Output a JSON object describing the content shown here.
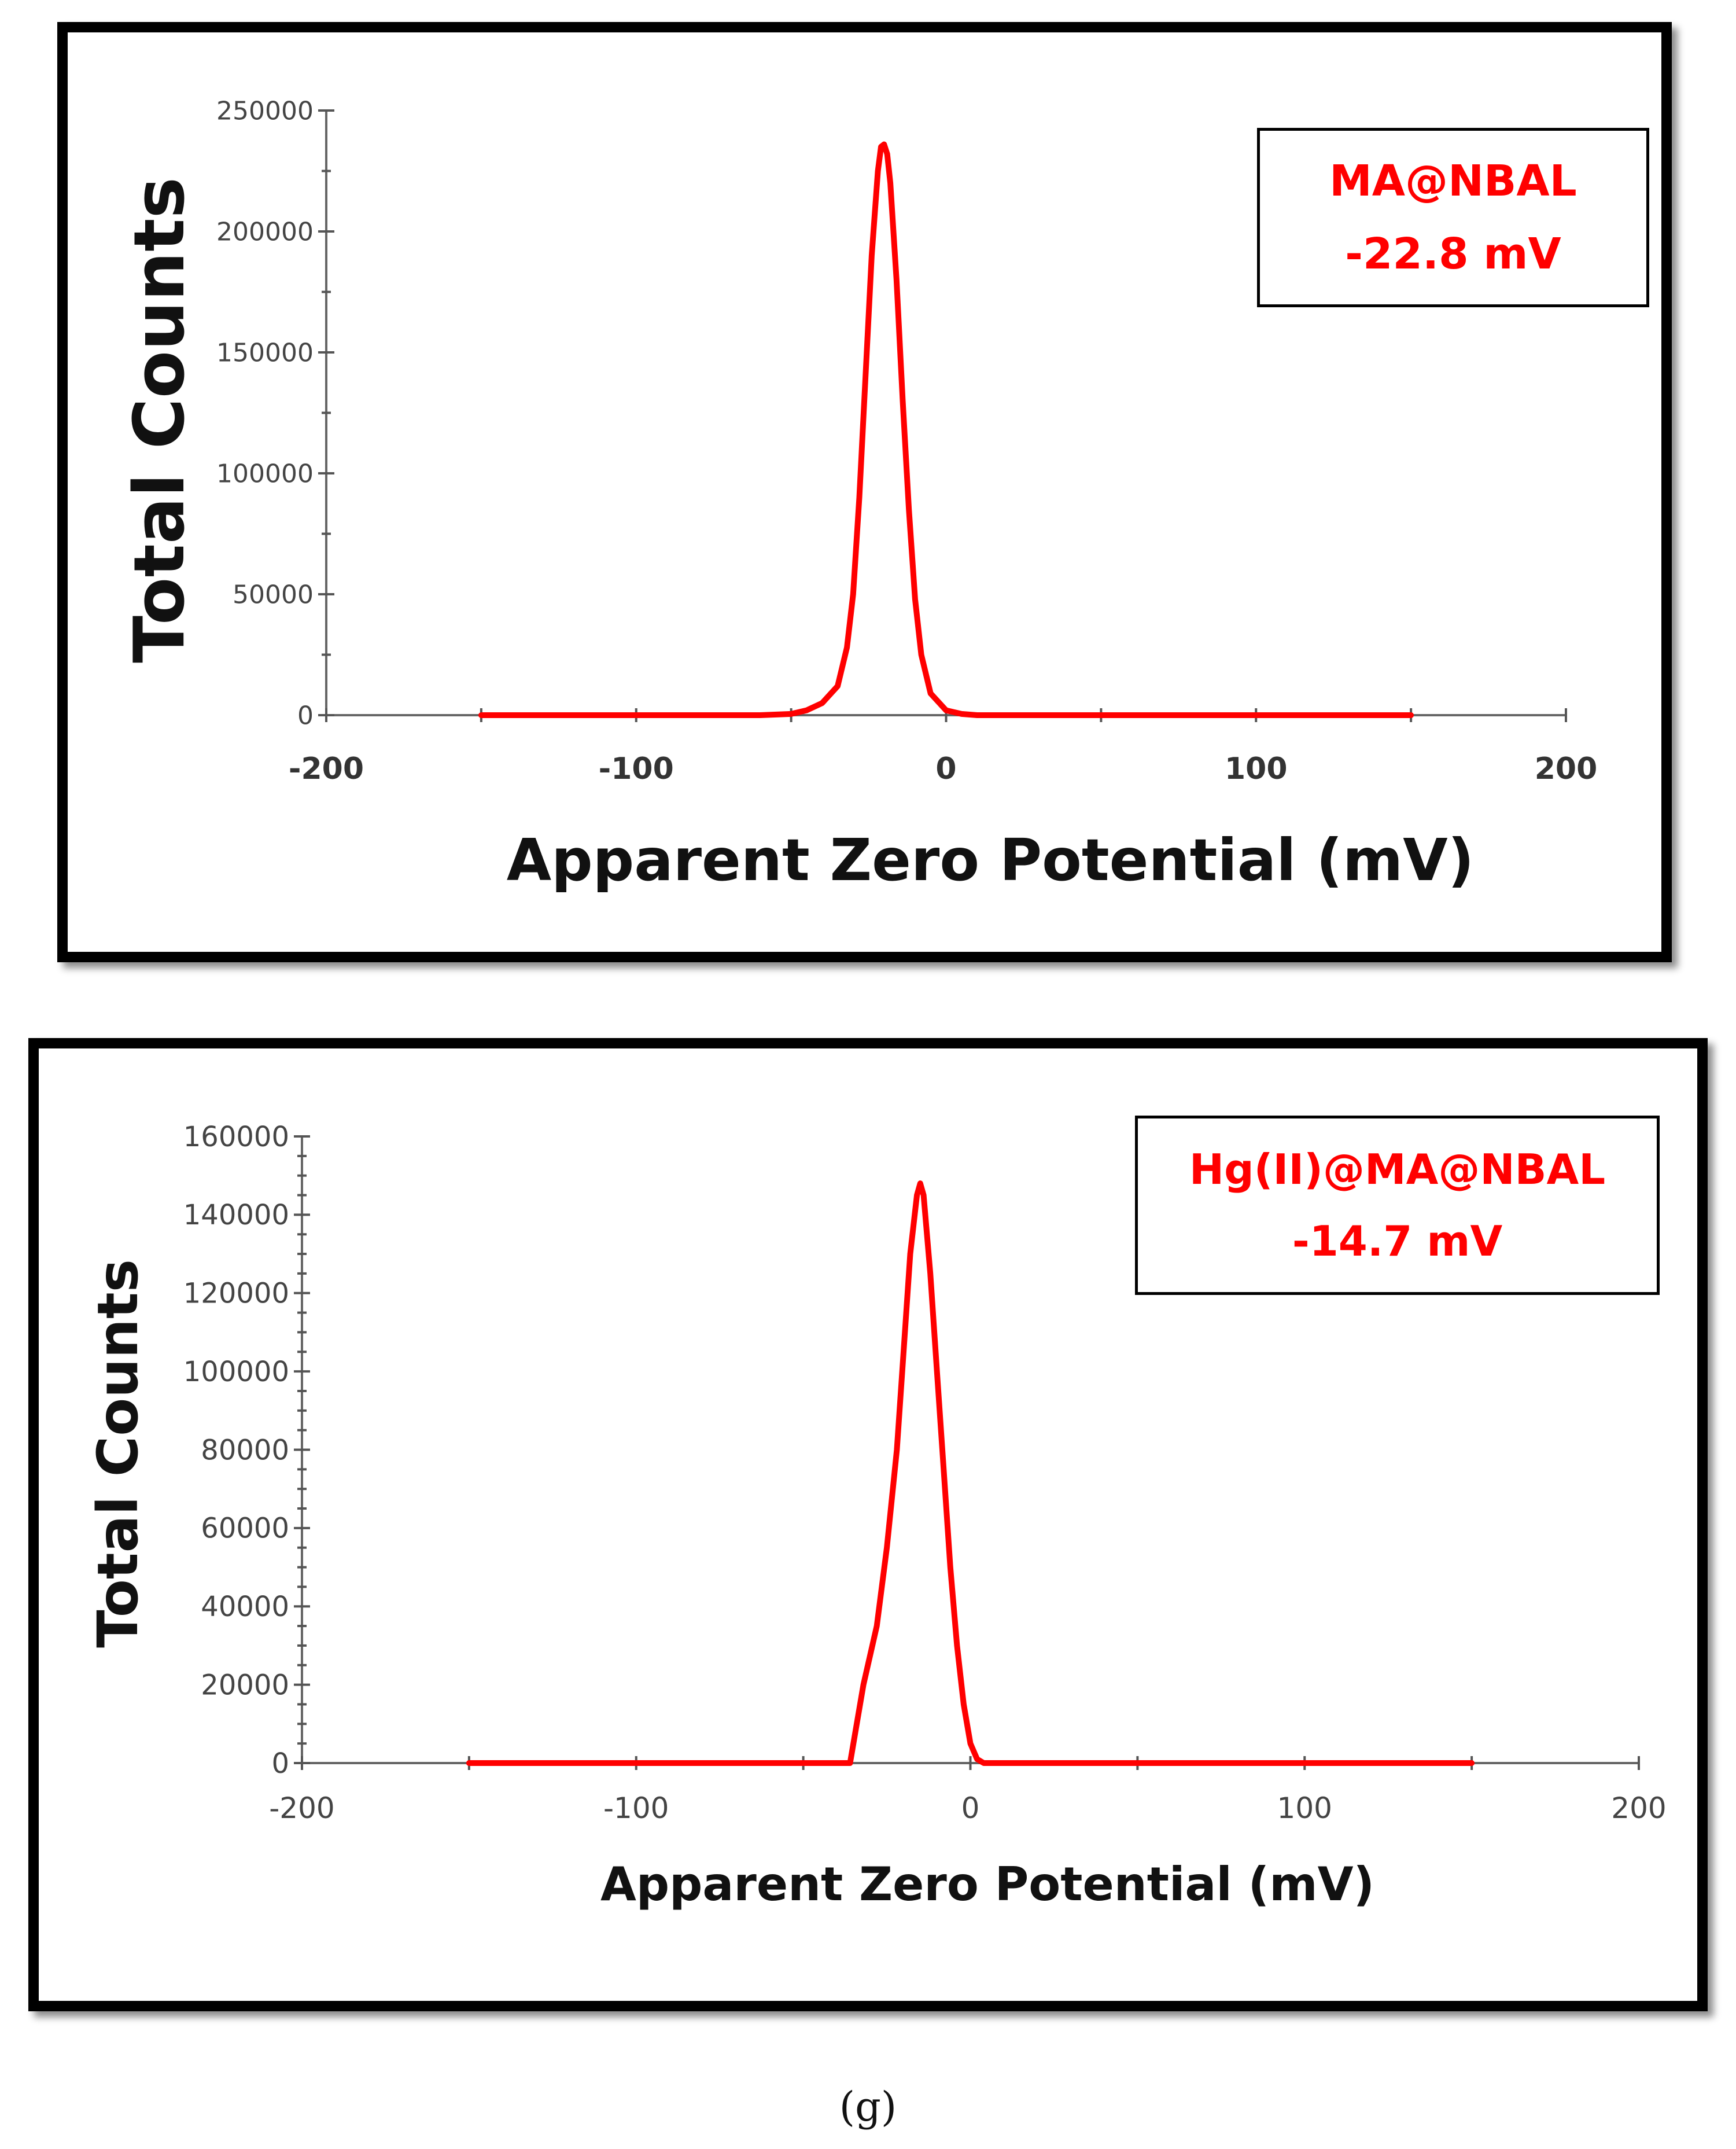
{
  "caption": "(g)",
  "colors": {
    "series": "#ff0000",
    "axis": "#555555",
    "border": "#000000"
  },
  "chart_data": [
    {
      "type": "line",
      "xlabel": "Apparent Zero Potential (mV)",
      "ylabel": "Total Counts",
      "xlim": [
        -200,
        200
      ],
      "ylim": [
        0,
        250000
      ],
      "xticks": [
        -200,
        -100,
        0,
        100,
        200
      ],
      "xtick_labels": [
        "-200",
        "-100",
        "0",
        "100",
        "200"
      ],
      "yticks": [
        0,
        50000,
        100000,
        150000,
        200000,
        250000
      ],
      "ytick_labels": [
        "0",
        "50000",
        "100000",
        "150000",
        "200000",
        "250000"
      ],
      "legend": {
        "sample": "MA@NBAL",
        "value": "-22.8 mV",
        "position": "top-right"
      },
      "series": [
        {
          "name": "MA@NBAL",
          "x": [
            -150,
            -60,
            -50,
            -45,
            -40,
            -35,
            -32,
            -30,
            -28,
            -26,
            -24,
            -22,
            -21,
            -20,
            -19,
            -18,
            -16,
            -14,
            -12,
            -10,
            -8,
            -5,
            0,
            5,
            10,
            60,
            150
          ],
          "y": [
            0,
            0,
            500,
            2000,
            5000,
            12000,
            28000,
            50000,
            90000,
            140000,
            190000,
            225000,
            235000,
            236000,
            232000,
            220000,
            180000,
            130000,
            85000,
            48000,
            25000,
            9000,
            2000,
            500,
            0,
            0,
            0
          ]
        }
      ]
    },
    {
      "type": "line",
      "xlabel": "Apparent Zero Potential (mV)",
      "ylabel": "Total Counts",
      "xlim": [
        -200,
        200
      ],
      "ylim": [
        0,
        160000
      ],
      "xticks": [
        -200,
        -100,
        0,
        100,
        200
      ],
      "xtick_labels": [
        "-200",
        "-100",
        "0",
        "100",
        "200"
      ],
      "yticks": [
        0,
        20000,
        40000,
        60000,
        80000,
        100000,
        120000,
        140000,
        160000
      ],
      "ytick_labels": [
        "0",
        "20000",
        "40000",
        "60000",
        "80000",
        "100000",
        "120000",
        "140000",
        "160000"
      ],
      "legend": {
        "sample": "Hg(II)@MA@NBAL",
        "value": "-14.7 mV",
        "position": "top-right"
      },
      "series": [
        {
          "name": "Hg(II)@MA@NBAL",
          "x": [
            -150,
            -40,
            -36,
            -32,
            -28,
            -25,
            -22,
            -20,
            -18,
            -16,
            -15,
            -14,
            -12,
            -10,
            -8,
            -6,
            -4,
            -2,
            0,
            2,
            4,
            8,
            150
          ],
          "y": [
            0,
            0,
            0,
            20000,
            35000,
            55000,
            80000,
            105000,
            130000,
            145000,
            148000,
            145000,
            125000,
            100000,
            75000,
            50000,
            30000,
            15000,
            5000,
            1000,
            0,
            0,
            0
          ]
        }
      ]
    }
  ]
}
